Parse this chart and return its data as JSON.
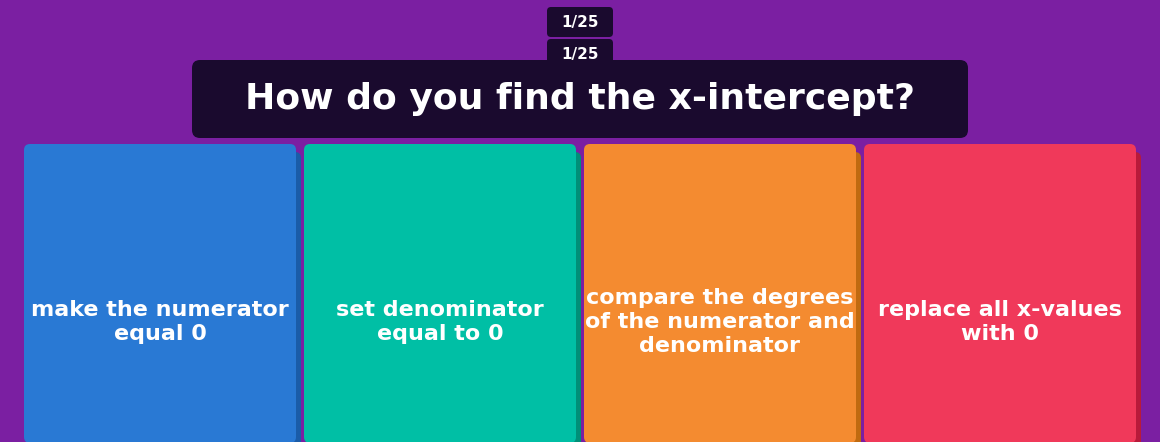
{
  "background_color": "#7B1FA2",
  "counter_text": "1/25",
  "question": "How do you find the x-intercept?",
  "question_box_color": "#1A0A2E",
  "question_text_color": "#FFFFFF",
  "counter_box_color": "#1A0A2E",
  "counter_text_color": "#FFFFFF",
  "cards": [
    {
      "color": "#2979D4",
      "shadow_color": "#1a5ca8",
      "lines": [
        "make the numerator",
        "equal 0"
      ]
    },
    {
      "color": "#00BFA5",
      "shadow_color": "#008f78",
      "lines": [
        "set denominator",
        "equal to 0"
      ]
    },
    {
      "color": "#F48B30",
      "shadow_color": "#c06a10",
      "lines": [
        "compare the degrees",
        "of the numerator and",
        "denominator"
      ]
    },
    {
      "color": "#F0395A",
      "shadow_color": "#b81a3a",
      "lines": [
        "replace all x-values",
        "with 0"
      ]
    }
  ],
  "card_text_color": "#FFFFFF",
  "card_font_size": 16,
  "question_font_size": 26,
  "counter_font_size": 11,
  "fig_width": 11.6,
  "fig_height": 4.42,
  "dpi": 100
}
